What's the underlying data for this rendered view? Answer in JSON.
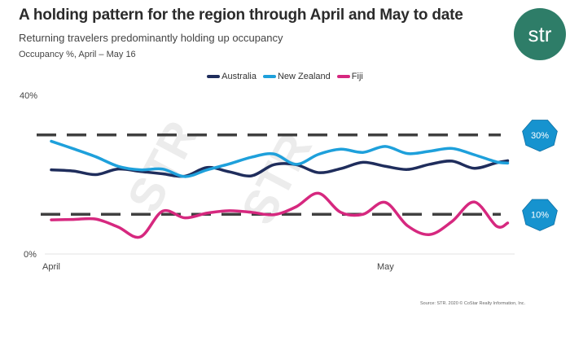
{
  "header": {
    "title": "A holding pattern for the region through April and May to date",
    "subtitle": "Returning travelers predominantly holding up occupancy",
    "measure": "Occupancy %, April – May 16"
  },
  "logo": {
    "text": "str",
    "color": "#2e7d68"
  },
  "watermark": "STR",
  "source": "Source: STR. 2020 © CoStar Realty Information, Inc.",
  "chart_data": {
    "type": "line",
    "title": "A holding pattern for the region through April and May to date",
    "ylabel": "",
    "xlabel": "",
    "ylim": [
      0,
      40
    ],
    "y_ticks": [
      "0%",
      "40%"
    ],
    "y_tick_values": [
      0,
      40
    ],
    "x_ticks": [
      {
        "label": "April",
        "date": "2020-04-01"
      },
      {
        "label": "May",
        "date": "2020-05-01"
      }
    ],
    "legend_position": "top",
    "grid": false,
    "x": [
      "2020-04-01",
      "2020-04-03",
      "2020-04-05",
      "2020-04-07",
      "2020-04-09",
      "2020-04-11",
      "2020-04-13",
      "2020-04-15",
      "2020-04-17",
      "2020-04-19",
      "2020-04-21",
      "2020-04-23",
      "2020-04-25",
      "2020-04-27",
      "2020-04-29",
      "2020-05-01",
      "2020-05-03",
      "2020-05-05",
      "2020-05-07",
      "2020-05-09",
      "2020-05-11",
      "2020-05-12"
    ],
    "series": [
      {
        "name": "Australia",
        "color": "#1f2d5c",
        "values": [
          21.2,
          20.9,
          20.0,
          21.4,
          20.8,
          20.2,
          19.6,
          21.8,
          20.7,
          19.7,
          22.5,
          22.5,
          20.5,
          21.5,
          23.1,
          22.1,
          21.3,
          22.6,
          23.4,
          21.6,
          23.0,
          23.5
        ]
      },
      {
        "name": "New Zealand",
        "color": "#1ea0db",
        "values": [
          28.4,
          26.5,
          24.5,
          22.1,
          21.2,
          21.4,
          19.5,
          21.2,
          22.7,
          24.4,
          25.2,
          22.6,
          25.1,
          26.4,
          25.6,
          27.1,
          25.3,
          25.9,
          26.6,
          25.0,
          23.2,
          22.9
        ]
      },
      {
        "name": "Fiji",
        "color": "#d6287f",
        "values": [
          8.6,
          8.7,
          8.8,
          6.8,
          4.3,
          10.8,
          9.1,
          10.3,
          10.9,
          10.5,
          9.9,
          11.9,
          15.3,
          10.5,
          10.0,
          13.0,
          7.1,
          4.9,
          8.2,
          13.1,
          7.0,
          7.8
        ]
      }
    ],
    "reference_lines": [
      {
        "value": 30,
        "label": "30%",
        "style": "dashed",
        "color": "#404040"
      },
      {
        "value": 10,
        "label": "10%",
        "style": "dashed",
        "color": "#404040"
      }
    ],
    "badge_color": "#1693cf"
  }
}
